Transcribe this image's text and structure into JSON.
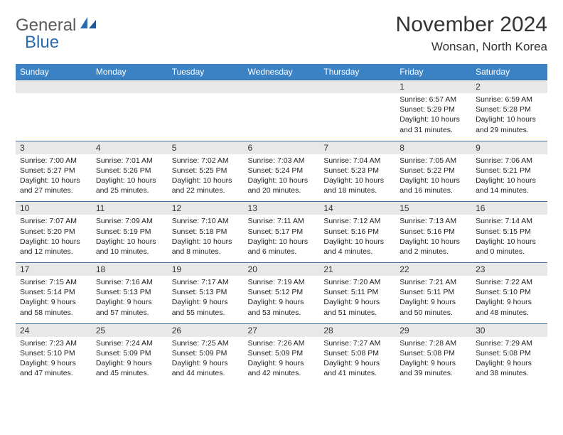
{
  "logo": {
    "text1": "General",
    "text2": "Blue"
  },
  "title": "November 2024",
  "location": "Wonsan, North Korea",
  "colors": {
    "header_bg": "#3b82c4",
    "header_text": "#ffffff",
    "daynum_bg": "#e8e8e8",
    "rule": "#3b6fa0",
    "logo_gray": "#5a5a5a",
    "logo_blue": "#2a6bb0"
  },
  "day_names": [
    "Sunday",
    "Monday",
    "Tuesday",
    "Wednesday",
    "Thursday",
    "Friday",
    "Saturday"
  ],
  "weeks": [
    [
      null,
      null,
      null,
      null,
      null,
      {
        "n": "1",
        "sr": "6:57 AM",
        "ss": "5:29 PM",
        "dl": "10 hours and 31 minutes."
      },
      {
        "n": "2",
        "sr": "6:59 AM",
        "ss": "5:28 PM",
        "dl": "10 hours and 29 minutes."
      }
    ],
    [
      {
        "n": "3",
        "sr": "7:00 AM",
        "ss": "5:27 PM",
        "dl": "10 hours and 27 minutes."
      },
      {
        "n": "4",
        "sr": "7:01 AM",
        "ss": "5:26 PM",
        "dl": "10 hours and 25 minutes."
      },
      {
        "n": "5",
        "sr": "7:02 AM",
        "ss": "5:25 PM",
        "dl": "10 hours and 22 minutes."
      },
      {
        "n": "6",
        "sr": "7:03 AM",
        "ss": "5:24 PM",
        "dl": "10 hours and 20 minutes."
      },
      {
        "n": "7",
        "sr": "7:04 AM",
        "ss": "5:23 PM",
        "dl": "10 hours and 18 minutes."
      },
      {
        "n": "8",
        "sr": "7:05 AM",
        "ss": "5:22 PM",
        "dl": "10 hours and 16 minutes."
      },
      {
        "n": "9",
        "sr": "7:06 AM",
        "ss": "5:21 PM",
        "dl": "10 hours and 14 minutes."
      }
    ],
    [
      {
        "n": "10",
        "sr": "7:07 AM",
        "ss": "5:20 PM",
        "dl": "10 hours and 12 minutes."
      },
      {
        "n": "11",
        "sr": "7:09 AM",
        "ss": "5:19 PM",
        "dl": "10 hours and 10 minutes."
      },
      {
        "n": "12",
        "sr": "7:10 AM",
        "ss": "5:18 PM",
        "dl": "10 hours and 8 minutes."
      },
      {
        "n": "13",
        "sr": "7:11 AM",
        "ss": "5:17 PM",
        "dl": "10 hours and 6 minutes."
      },
      {
        "n": "14",
        "sr": "7:12 AM",
        "ss": "5:16 PM",
        "dl": "10 hours and 4 minutes."
      },
      {
        "n": "15",
        "sr": "7:13 AM",
        "ss": "5:16 PM",
        "dl": "10 hours and 2 minutes."
      },
      {
        "n": "16",
        "sr": "7:14 AM",
        "ss": "5:15 PM",
        "dl": "10 hours and 0 minutes."
      }
    ],
    [
      {
        "n": "17",
        "sr": "7:15 AM",
        "ss": "5:14 PM",
        "dl": "9 hours and 58 minutes."
      },
      {
        "n": "18",
        "sr": "7:16 AM",
        "ss": "5:13 PM",
        "dl": "9 hours and 57 minutes."
      },
      {
        "n": "19",
        "sr": "7:17 AM",
        "ss": "5:13 PM",
        "dl": "9 hours and 55 minutes."
      },
      {
        "n": "20",
        "sr": "7:19 AM",
        "ss": "5:12 PM",
        "dl": "9 hours and 53 minutes."
      },
      {
        "n": "21",
        "sr": "7:20 AM",
        "ss": "5:11 PM",
        "dl": "9 hours and 51 minutes."
      },
      {
        "n": "22",
        "sr": "7:21 AM",
        "ss": "5:11 PM",
        "dl": "9 hours and 50 minutes."
      },
      {
        "n": "23",
        "sr": "7:22 AM",
        "ss": "5:10 PM",
        "dl": "9 hours and 48 minutes."
      }
    ],
    [
      {
        "n": "24",
        "sr": "7:23 AM",
        "ss": "5:10 PM",
        "dl": "9 hours and 47 minutes."
      },
      {
        "n": "25",
        "sr": "7:24 AM",
        "ss": "5:09 PM",
        "dl": "9 hours and 45 minutes."
      },
      {
        "n": "26",
        "sr": "7:25 AM",
        "ss": "5:09 PM",
        "dl": "9 hours and 44 minutes."
      },
      {
        "n": "27",
        "sr": "7:26 AM",
        "ss": "5:09 PM",
        "dl": "9 hours and 42 minutes."
      },
      {
        "n": "28",
        "sr": "7:27 AM",
        "ss": "5:08 PM",
        "dl": "9 hours and 41 minutes."
      },
      {
        "n": "29",
        "sr": "7:28 AM",
        "ss": "5:08 PM",
        "dl": "9 hours and 39 minutes."
      },
      {
        "n": "30",
        "sr": "7:29 AM",
        "ss": "5:08 PM",
        "dl": "9 hours and 38 minutes."
      }
    ]
  ],
  "labels": {
    "sunrise": "Sunrise:",
    "sunset": "Sunset:",
    "daylight": "Daylight:"
  }
}
